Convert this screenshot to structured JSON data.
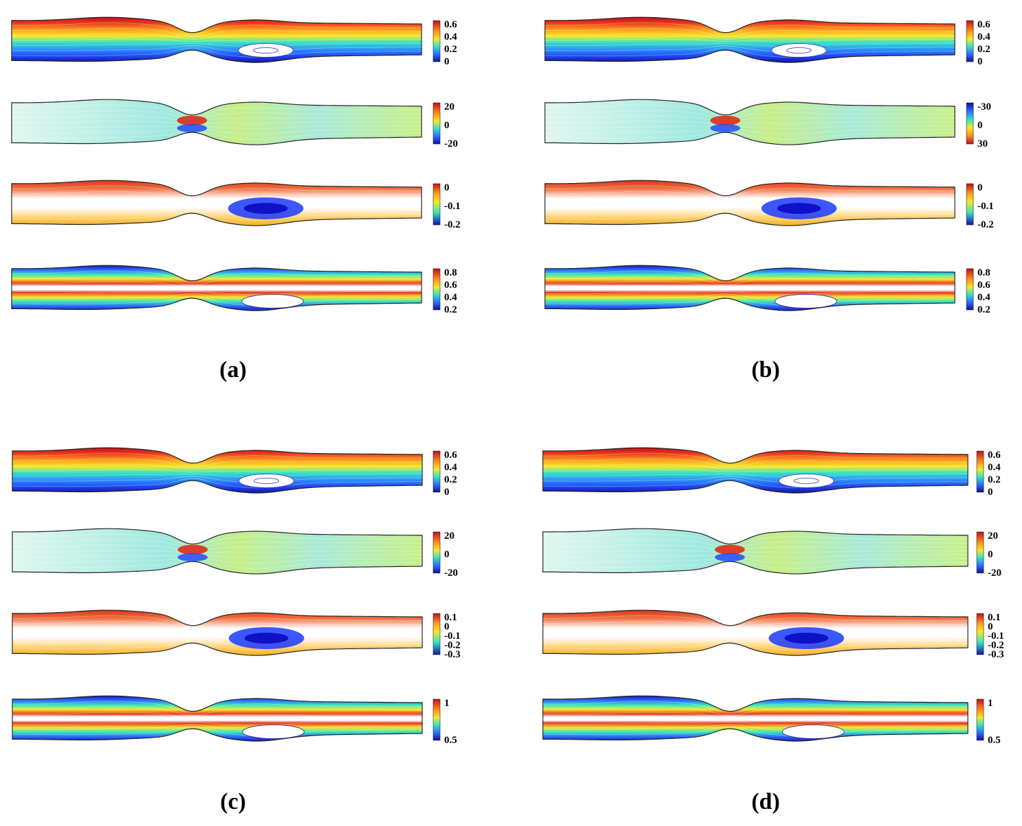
{
  "figure": {
    "panels": [
      {
        "label": "(a)",
        "rows": [
          {
            "field": "streamfunction",
            "colormap": "jet",
            "ticks": [
              "0.6",
              "0.4",
              "0.2",
              "0"
            ]
          },
          {
            "field": "vorticity",
            "colormap": "jet",
            "ticks": [
              "20",
              "0",
              "-20"
            ]
          },
          {
            "field": "warm-white-blue",
            "colormap": "warm",
            "ticks": [
              "0",
              "-0.1",
              "-0.2"
            ]
          },
          {
            "field": "symmetric",
            "colormap": "jet",
            "ticks": [
              "0.8",
              "0.6",
              "0.4",
              "0.2"
            ]
          }
        ]
      },
      {
        "label": "(b)",
        "rows": [
          {
            "field": "streamfunction",
            "colormap": "jet",
            "ticks": [
              "0.6",
              "0.4",
              "0.2",
              "0"
            ]
          },
          {
            "field": "vorticity",
            "colormap": "jet-reversed",
            "ticks": [
              "-30",
              "0",
              "30"
            ]
          },
          {
            "field": "warm-white-blue",
            "colormap": "warm",
            "ticks": [
              "0",
              "-0.1",
              "-0.2"
            ]
          },
          {
            "field": "symmetric",
            "colormap": "jet",
            "ticks": [
              "0.8",
              "0.6",
              "0.4",
              "0.2"
            ]
          }
        ]
      },
      {
        "label": "(c)",
        "rows": [
          {
            "field": "streamfunction",
            "colormap": "jet",
            "ticks": [
              "0.6",
              "0.4",
              "0.2",
              "0"
            ]
          },
          {
            "field": "vorticity",
            "colormap": "jet",
            "ticks": [
              "20",
              "0",
              "-20"
            ]
          },
          {
            "field": "warm-white-blue",
            "colormap": "warm",
            "ticks": [
              "0.1",
              "0",
              "-0.1",
              "-0.2",
              "-0.3"
            ]
          },
          {
            "field": "symmetric",
            "colormap": "jet",
            "ticks": [
              "1",
              "0.5"
            ]
          }
        ]
      },
      {
        "label": "(d)",
        "rows": [
          {
            "field": "streamfunction",
            "colormap": "jet",
            "ticks": [
              "0.6",
              "0.4",
              "0.2",
              "0"
            ]
          },
          {
            "field": "vorticity",
            "colormap": "jet",
            "ticks": [
              "20",
              "0",
              "-20"
            ]
          },
          {
            "field": "warm-white-blue",
            "colormap": "warm",
            "ticks": [
              "0.1",
              "0",
              "-0.1",
              "-0.2",
              "-0.3"
            ]
          },
          {
            "field": "symmetric",
            "colormap": "jet",
            "ticks": [
              "1",
              "0.5"
            ]
          }
        ]
      }
    ],
    "colors": {
      "jet_top": "#d7191c",
      "jet_upper": "#ffd400",
      "jet_mid": "#22e5c8",
      "jet_lower": "#1f5cff",
      "jet_bottom": "#1010a0",
      "warm_top": "#e03a1a",
      "warm_white": "#ffffff",
      "warm_blue": "#1a3aff",
      "outline": "#222222"
    }
  }
}
